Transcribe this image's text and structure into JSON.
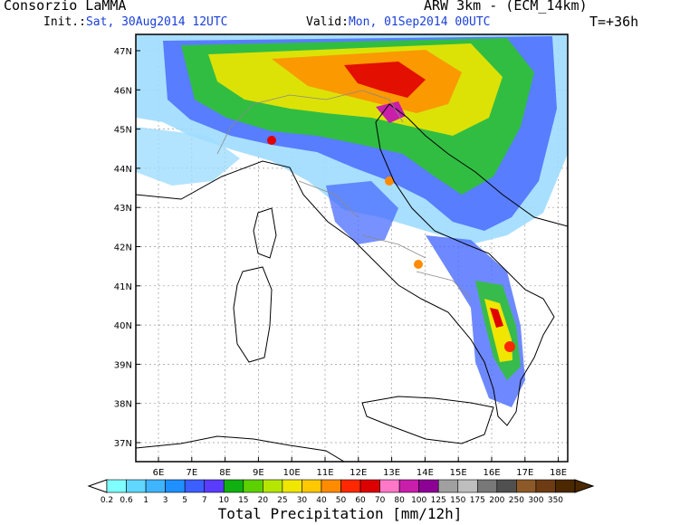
{
  "header": {
    "org": "Consorzio LaMMA",
    "model": "ARW 3km - (ECM_14km)",
    "init_label": "Init.:",
    "init_value": "Sat, 30Aug2014 12UTC",
    "valid_label": "Valid:",
    "valid_value": "Mon, 01Sep2014 00UTC",
    "lead": "T=+36h"
  },
  "axes": {
    "lat_labels": [
      "47N",
      "46N",
      "45N",
      "44N",
      "43N",
      "42N",
      "41N",
      "40N",
      "39N",
      "38N",
      "37N"
    ],
    "lon_labels": [
      "6E",
      "7E",
      "8E",
      "9E",
      "10E",
      "11E",
      "12E",
      "13E",
      "14E",
      "15E",
      "16E",
      "17E",
      "18E"
    ]
  },
  "legend": {
    "labels": [
      "0.2",
      "0.6",
      "1",
      "3",
      "5",
      "7",
      "10",
      "15",
      "20",
      "25",
      "30",
      "40",
      "50",
      "60",
      "70",
      "80",
      "100",
      "125",
      "150",
      "175",
      "200",
      "250",
      "300",
      "350"
    ],
    "colors": [
      "#7fffff",
      "#5fd7ff",
      "#3fb4ff",
      "#1e90ff",
      "#3c5fff",
      "#5a3cff",
      "#10b010",
      "#5cd000",
      "#b4e600",
      "#f0e600",
      "#ffc800",
      "#ff8c00",
      "#ff2800",
      "#dc0000",
      "#ff78c8",
      "#c81eaa",
      "#8c0096",
      "#a0a0a0",
      "#bebebe",
      "#787878",
      "#505050",
      "#8c5a28",
      "#6e3c14",
      "#4b2800"
    ],
    "caption": "Total Precipitation [mm/12h]"
  },
  "icons": [
    "left-arrow-icon",
    "right-arrow-icon"
  ]
}
